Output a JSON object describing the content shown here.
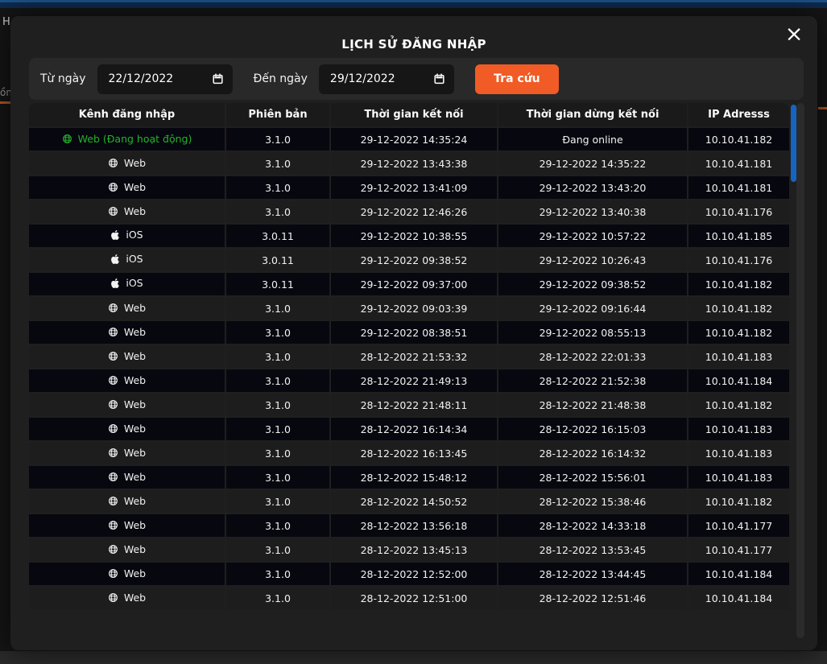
{
  "background": {
    "fragment_text_1": "H",
    "fragment_text_2": "ồn"
  },
  "modal": {
    "title": "LỊCH SỬ ĐĂNG NHẬP",
    "close_icon": "×",
    "filter": {
      "from_label": "Từ ngày",
      "from_value": "22/12/2022",
      "to_label": "Đến ngày",
      "to_value": "29/12/2022",
      "search_button": "Tra cứu"
    },
    "table": {
      "columns": [
        "Kênh đăng nhập",
        "Phiên bản",
        "Thời gian kết nối",
        "Thời gian dừng kết nối",
        "IP Adresss"
      ],
      "rows": [
        {
          "channel": "Web (Đang hoạt động)",
          "icon": "globe",
          "active": true,
          "version": "3.1.0",
          "connected": "29-12-2022 14:35:24",
          "disconnected": "Đang online",
          "ip": "10.10.41.182"
        },
        {
          "channel": "Web",
          "icon": "globe",
          "active": false,
          "version": "3.1.0",
          "connected": "29-12-2022 13:43:38",
          "disconnected": "29-12-2022 14:35:22",
          "ip": "10.10.41.181"
        },
        {
          "channel": "Web",
          "icon": "globe",
          "active": false,
          "version": "3.1.0",
          "connected": "29-12-2022 13:41:09",
          "disconnected": "29-12-2022 13:43:20",
          "ip": "10.10.41.181"
        },
        {
          "channel": "Web",
          "icon": "globe",
          "active": false,
          "version": "3.1.0",
          "connected": "29-12-2022 12:46:26",
          "disconnected": "29-12-2022 13:40:38",
          "ip": "10.10.41.176"
        },
        {
          "channel": "iOS",
          "icon": "apple",
          "active": false,
          "version": "3.0.11",
          "connected": "29-12-2022 10:38:55",
          "disconnected": "29-12-2022 10:57:22",
          "ip": "10.10.41.185"
        },
        {
          "channel": "iOS",
          "icon": "apple",
          "active": false,
          "version": "3.0.11",
          "connected": "29-12-2022 09:38:52",
          "disconnected": "29-12-2022 10:26:43",
          "ip": "10.10.41.176"
        },
        {
          "channel": "iOS",
          "icon": "apple",
          "active": false,
          "version": "3.0.11",
          "connected": "29-12-2022 09:37:00",
          "disconnected": "29-12-2022 09:38:52",
          "ip": "10.10.41.182"
        },
        {
          "channel": "Web",
          "icon": "globe",
          "active": false,
          "version": "3.1.0",
          "connected": "29-12-2022 09:03:39",
          "disconnected": "29-12-2022 09:16:44",
          "ip": "10.10.41.182"
        },
        {
          "channel": "Web",
          "icon": "globe",
          "active": false,
          "version": "3.1.0",
          "connected": "29-12-2022 08:38:51",
          "disconnected": "29-12-2022 08:55:13",
          "ip": "10.10.41.182"
        },
        {
          "channel": "Web",
          "icon": "globe",
          "active": false,
          "version": "3.1.0",
          "connected": "28-12-2022 21:53:32",
          "disconnected": "28-12-2022 22:01:33",
          "ip": "10.10.41.183"
        },
        {
          "channel": "Web",
          "icon": "globe",
          "active": false,
          "version": "3.1.0",
          "connected": "28-12-2022 21:49:13",
          "disconnected": "28-12-2022 21:52:38",
          "ip": "10.10.41.184"
        },
        {
          "channel": "Web",
          "icon": "globe",
          "active": false,
          "version": "3.1.0",
          "connected": "28-12-2022 21:48:11",
          "disconnected": "28-12-2022 21:48:38",
          "ip": "10.10.41.182"
        },
        {
          "channel": "Web",
          "icon": "globe",
          "active": false,
          "version": "3.1.0",
          "connected": "28-12-2022 16:14:34",
          "disconnected": "28-12-2022 16:15:03",
          "ip": "10.10.41.183"
        },
        {
          "channel": "Web",
          "icon": "globe",
          "active": false,
          "version": "3.1.0",
          "connected": "28-12-2022 16:13:45",
          "disconnected": "28-12-2022 16:14:32",
          "ip": "10.10.41.183"
        },
        {
          "channel": "Web",
          "icon": "globe",
          "active": false,
          "version": "3.1.0",
          "connected": "28-12-2022 15:48:12",
          "disconnected": "28-12-2022 15:56:01",
          "ip": "10.10.41.183"
        },
        {
          "channel": "Web",
          "icon": "globe",
          "active": false,
          "version": "3.1.0",
          "connected": "28-12-2022 14:50:52",
          "disconnected": "28-12-2022 15:38:46",
          "ip": "10.10.41.182"
        },
        {
          "channel": "Web",
          "icon": "globe",
          "active": false,
          "version": "3.1.0",
          "connected": "28-12-2022 13:56:18",
          "disconnected": "28-12-2022 14:33:18",
          "ip": "10.10.41.177"
        },
        {
          "channel": "Web",
          "icon": "globe",
          "active": false,
          "version": "3.1.0",
          "connected": "28-12-2022 13:45:13",
          "disconnected": "28-12-2022 13:53:45",
          "ip": "10.10.41.177"
        },
        {
          "channel": "Web",
          "icon": "globe",
          "active": false,
          "version": "3.1.0",
          "connected": "28-12-2022 12:52:00",
          "disconnected": "28-12-2022 13:44:45",
          "ip": "10.10.41.184"
        },
        {
          "channel": "Web",
          "icon": "globe",
          "active": false,
          "version": "3.1.0",
          "connected": "28-12-2022 12:51:00",
          "disconnected": "28-12-2022 12:51:46",
          "ip": "10.10.41.184"
        }
      ]
    }
  },
  "colors": {
    "accent_orange": "#F15B25",
    "active_green": "#22B427",
    "scrollbar_blue": "#1565C0",
    "topbar_navy": "#0D2A4C"
  }
}
